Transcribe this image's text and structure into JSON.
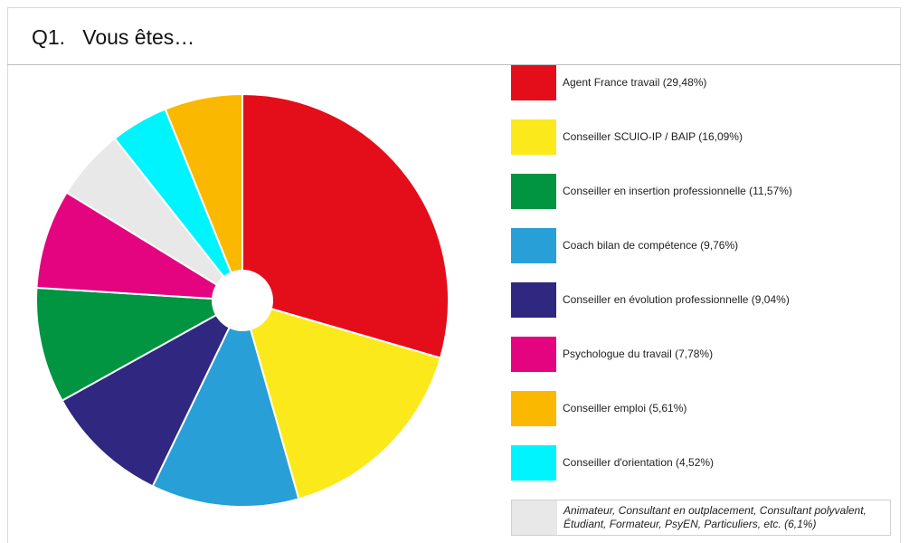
{
  "header": {
    "title": "Q1.   Vous êtes…"
  },
  "chart_data": {
    "type": "pie",
    "donut_hole": true,
    "legend_position": "right",
    "slices": [
      {
        "label": "Agent France travail (29,48%)",
        "value": 29.48,
        "color": "#e30e1a"
      },
      {
        "label": "Conseiller SCUIO-IP / BAIP (16,09%)",
        "value": 16.09,
        "color": "#fbe91b"
      },
      {
        "label": "Conseiller en insertion professionnelle (11,57%)",
        "value": 11.57,
        "color": "#289fd6"
      },
      {
        "label": "Coach bilan de compétence (9,76%)",
        "value": 9.76,
        "color": "#302780"
      },
      {
        "label": "Conseiller en évolution professionnelle (9,04%)",
        "value": 9.04,
        "color": "#019441"
      },
      {
        "label": "Psychologue du travail (7,78%)",
        "value": 7.78,
        "color": "#e4047f"
      },
      {
        "label": "Conseiller emploi (5,61%)",
        "value": 5.61,
        "color": "#e8e8e8"
      },
      {
        "label": "Conseiller d'orientation (4,52%)",
        "value": 4.52,
        "color": "#00f4fd"
      },
      {
        "label": "Animateur, Consultant en outplacement, Consultant polyvalent, Étudiant, Formateur, PsyEN, Particuliers, etc. (6,1%)",
        "value": 6.1,
        "color": "#fbb800"
      }
    ],
    "legend": [
      {
        "label": "Agent France travail (29,48%)",
        "color": "#e30e1a"
      },
      {
        "label": "Conseiller SCUIO-IP / BAIP (16,09%)",
        "color": "#fbe91b"
      },
      {
        "label": "Conseiller en insertion professionnelle (11,57%)",
        "color": "#019441"
      },
      {
        "label": "Coach bilan de compétence (9,76%)",
        "color": "#289fd6"
      },
      {
        "label": "Conseiller en évolution professionnelle (9,04%)",
        "color": "#302780"
      },
      {
        "label": "Psychologue du travail (7,78%)",
        "color": "#e4047f"
      },
      {
        "label": "Conseiller emploi (5,61%)",
        "color": "#fbb800"
      },
      {
        "label": "Conseiller d'orientation (4,52%)",
        "color": "#00f4fd"
      },
      {
        "label": "Animateur, Consultant en outplacement, Consultant polyvalent, Étudiant, Formateur, PsyEN, Particuliers, etc. (6,1%)",
        "color": "#e8e8e8"
      }
    ]
  }
}
